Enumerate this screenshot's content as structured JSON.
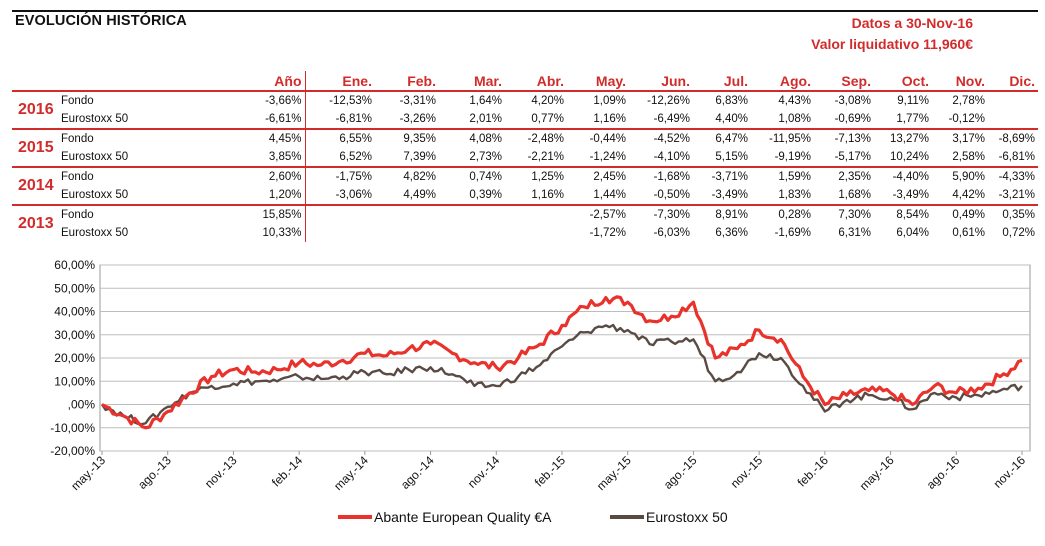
{
  "header": {
    "title": "EVOLUCIÓN HISTÓRICA",
    "date_line": "Datos a 30-Nov-16",
    "nav_line": "Valor liquidativo 11,960€"
  },
  "table": {
    "columns": [
      "Año",
      "Ene.",
      "Feb.",
      "Mar.",
      "Abr.",
      "May.",
      "Jun.",
      "Jul.",
      "Ago.",
      "Sep.",
      "Oct.",
      "Nov.",
      "Dic."
    ],
    "groups": [
      {
        "year": "2016",
        "rows": [
          {
            "label": "Fondo",
            "values": [
              "-3,66%",
              "-12,53%",
              "-3,31%",
              "1,64%",
              "4,20%",
              "1,09%",
              "-12,26%",
              "6,83%",
              "4,43%",
              "-3,08%",
              "9,11%",
              "2,78%",
              ""
            ]
          },
          {
            "label": "Eurostoxx 50",
            "values": [
              "-6,61%",
              "-6,81%",
              "-3,26%",
              "2,01%",
              "0,77%",
              "1,16%",
              "-6,49%",
              "4,40%",
              "1,08%",
              "-0,69%",
              "1,77%",
              "-0,12%",
              ""
            ]
          }
        ]
      },
      {
        "year": "2015",
        "rows": [
          {
            "label": "Fondo",
            "values": [
              "4,45%",
              "6,55%",
              "9,35%",
              "4,08%",
              "-2,48%",
              "-0,44%",
              "-4,52%",
              "6,47%",
              "-11,95%",
              "-7,13%",
              "13,27%",
              "3,17%",
              "-8,69%"
            ]
          },
          {
            "label": "Eurostoxx 50",
            "values": [
              "3,85%",
              "6,52%",
              "7,39%",
              "2,73%",
              "-2,21%",
              "-1,24%",
              "-4,10%",
              "5,15%",
              "-9,19%",
              "-5,17%",
              "10,24%",
              "2,58%",
              "-6,81%"
            ]
          }
        ]
      },
      {
        "year": "2014",
        "rows": [
          {
            "label": "Fondo",
            "values": [
              "2,60%",
              "-1,75%",
              "4,82%",
              "0,74%",
              "1,25%",
              "2,45%",
              "-1,68%",
              "-3,71%",
              "1,59%",
              "2,35%",
              "-4,40%",
              "5,90%",
              "-4,33%"
            ]
          },
          {
            "label": "Eurostoxx 50",
            "values": [
              "1,20%",
              "-3,06%",
              "4,49%",
              "0,39%",
              "1,16%",
              "1,44%",
              "-0,50%",
              "-3,49%",
              "1,83%",
              "1,68%",
              "-3,49%",
              "4,42%",
              "-3,21%"
            ]
          }
        ]
      },
      {
        "year": "2013",
        "rows": [
          {
            "label": "Fondo",
            "values": [
              "15,85%",
              "",
              "",
              "",
              "",
              "-2,57%",
              "-7,30%",
              "8,91%",
              "0,28%",
              "7,30%",
              "8,54%",
              "0,49%",
              "0,35%"
            ]
          },
          {
            "label": "Eurostoxx 50",
            "values": [
              "10,33%",
              "",
              "",
              "",
              "",
              "-1,72%",
              "-6,03%",
              "6,36%",
              "-1,69%",
              "6,31%",
              "6,04%",
              "0,61%",
              "0,72%"
            ]
          }
        ]
      }
    ]
  },
  "chart_data": {
    "type": "line",
    "x": [
      "may.-13",
      "jun.-13",
      "jul.-13",
      "ago.-13",
      "sep.-13",
      "oct.-13",
      "nov.-13",
      "dic.-13",
      "ene.-14",
      "feb.-14",
      "mar.-14",
      "abr.-14",
      "may.-14",
      "jun.-14",
      "jul.-14",
      "ago.-14",
      "sep.-14",
      "oct.-14",
      "nov.-14",
      "dic.-14",
      "ene.-15",
      "feb.-15",
      "mar.-15",
      "abr.-15",
      "may.-15",
      "jun.-15",
      "jul.-15",
      "ago.-15",
      "sep.-15",
      "oct.-15",
      "nov.-15",
      "dic.-15",
      "ene.-16",
      "feb.-16",
      "mar.-16",
      "abr.-16",
      "may.-16",
      "jun.-16",
      "jul.-16",
      "ago.-16",
      "sep.-16",
      "oct.-16",
      "nov.-16"
    ],
    "x_tick_labels": [
      "may.-13",
      "ago.-13",
      "nov.-13",
      "feb.-14",
      "may.-14",
      "ago.-14",
      "nov.-14",
      "feb.-15",
      "may.-15",
      "ago.-15",
      "nov.-15",
      "feb.-16",
      "may.-16",
      "ago.-16",
      "nov.-16"
    ],
    "series": [
      {
        "name": "Abante European Quality €A",
        "color": "#e8322b",
        "values": [
          0,
          -5,
          -10,
          -3,
          5,
          12,
          15,
          14,
          15,
          18,
          17,
          19,
          22,
          21,
          24,
          26,
          22,
          18,
          16,
          20,
          26,
          34,
          42,
          46,
          44,
          36,
          38,
          44,
          20,
          24,
          32,
          28,
          12,
          0,
          4,
          6,
          5,
          0,
          8,
          5,
          7,
          12,
          19
        ]
      },
      {
        "name": "Eurostoxx 50",
        "color": "#5a4a44",
        "values": [
          0,
          -5,
          -8,
          -1,
          5,
          8,
          9,
          10,
          10,
          12,
          11,
          12,
          14,
          13,
          15,
          16,
          13,
          8,
          8,
          12,
          17,
          25,
          31,
          34,
          32,
          26,
          27,
          28,
          10,
          14,
          22,
          20,
          8,
          -3,
          2,
          4,
          3,
          -2,
          5,
          3,
          4,
          6,
          8
        ]
      }
    ],
    "ylim": [
      -20,
      60
    ],
    "y_ticks": [
      "-20,00%",
      "-10,00%",
      ",00%",
      "10,00%",
      "20,00%",
      "30,00%",
      "40,00%",
      "50,00%",
      "60,00%"
    ],
    "grid": true,
    "legend_position": "bottom-center"
  }
}
